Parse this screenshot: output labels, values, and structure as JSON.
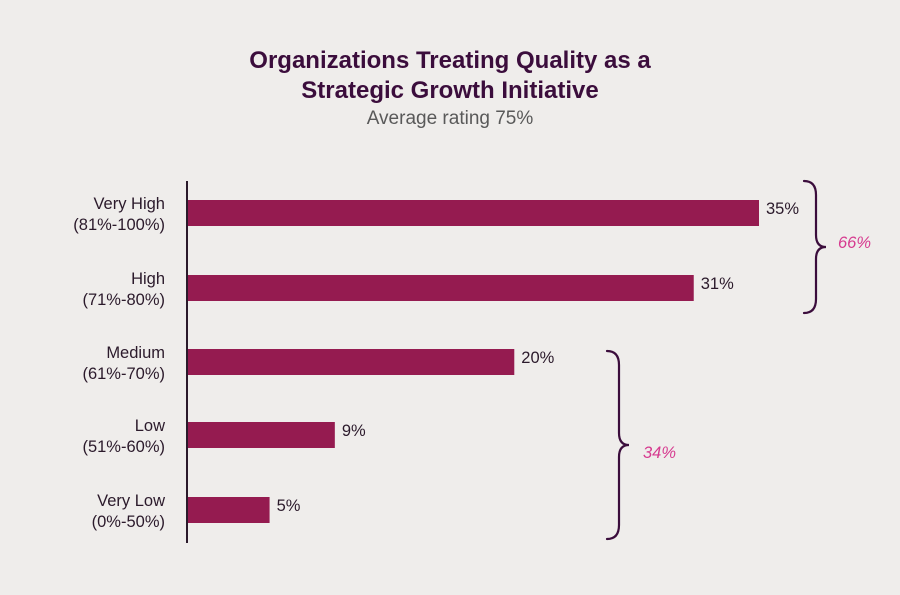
{
  "title_line1": "Organizations Treating Quality as a",
  "title_line2": "Strategic Growth Initiative",
  "subtitle": "Average rating 75%",
  "colors": {
    "bar": "#951b50",
    "axis": "#2b1a2b",
    "bracket": "#3b0d3c",
    "group_label": "#d63a8f",
    "background": "#efedeb"
  },
  "chart_data": {
    "type": "bar",
    "orientation": "horizontal",
    "categories": [
      [
        "Very High",
        "(81%-100%)"
      ],
      [
        "High",
        "(71%-80%)"
      ],
      [
        "Medium",
        "(61%-70%)"
      ],
      [
        "Low",
        "(51%-60%)"
      ],
      [
        "Very Low",
        "(0%-50%)"
      ]
    ],
    "values": [
      35,
      31,
      20,
      9,
      5
    ],
    "value_labels": [
      "35%",
      "31%",
      "20%",
      "9%",
      "5%"
    ],
    "groups": [
      {
        "label": "66%",
        "categories": [
          "Very High",
          "High"
        ]
      },
      {
        "label": "34%",
        "categories": [
          "Medium",
          "Low",
          "Very Low"
        ]
      }
    ],
    "title": "Organizations Treating Quality as a Strategic Growth Initiative",
    "subtitle": "Average rating 75%",
    "xlim": [
      0,
      35
    ]
  }
}
